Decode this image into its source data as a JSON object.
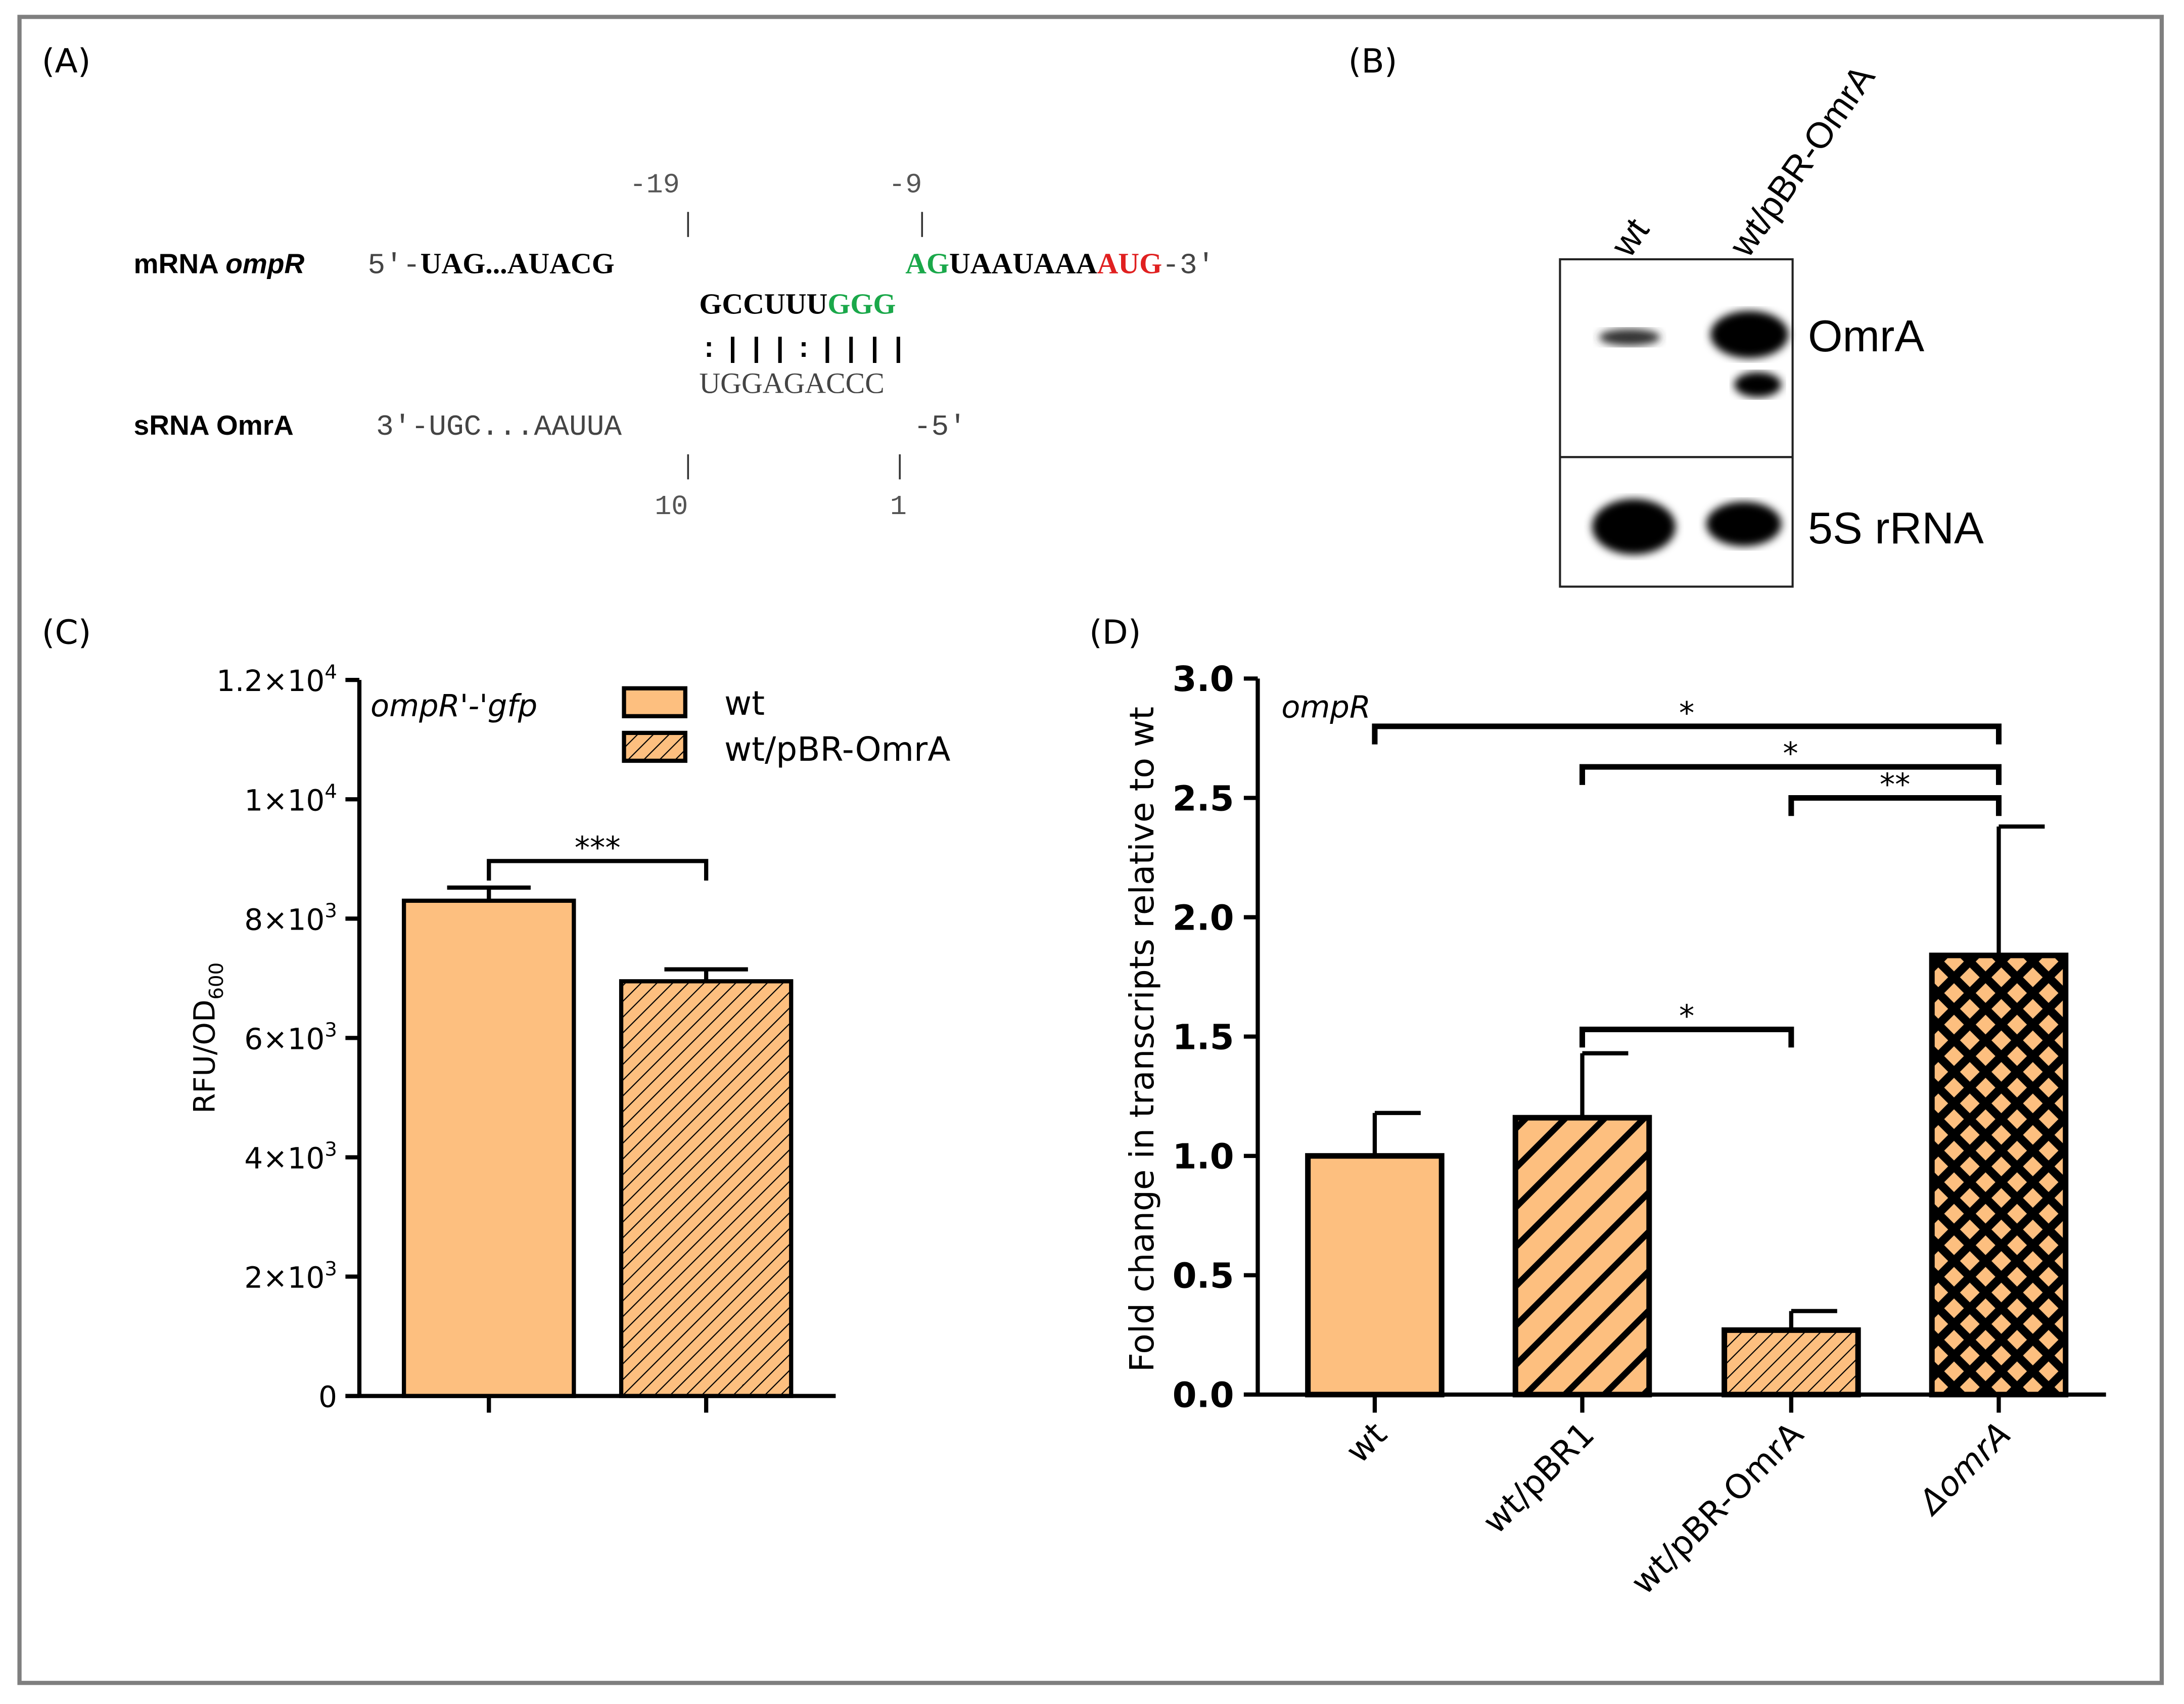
{
  "panel_labels": {
    "a": "(A)",
    "b": "(B)",
    "c": "(C)",
    "d": "(D)"
  },
  "panel_a": {
    "mrna_label_prefix": "mRNA ",
    "mrna_label_gene": "ompR",
    "mrna_5prime": "5'-",
    "mrna_seq_left": "UAG...AUACG",
    "mrna_green": "AG",
    "mrna_mid": "UAAUAAA",
    "mrna_red": "AUG",
    "mrna_3prime": "-3'",
    "loop_black": "GCCUUU",
    "loop_green": "GGG",
    "pairing": ":|||:||||",
    "srna_pair_seq": "UGGAGACCC",
    "srna_label": "sRNA OmrA",
    "srna_seq_left": "3'-UGC...AAUUA",
    "srna_5prime": "-5'",
    "pos_top_1": "-19",
    "pos_top_2": "-9",
    "pos_bottom_1": "10",
    "pos_bottom_2": "1",
    "colors": {
      "green": "#1aa84a",
      "red": "#e02020"
    }
  },
  "panel_b": {
    "lane_labels": [
      "wt",
      "wt/pBR-OmrA"
    ],
    "band_labels": [
      "OmrA",
      "5S rRNA"
    ]
  },
  "chart_data": [
    {
      "type": "bar",
      "title": "",
      "annotation": "ompR'-'gfp",
      "ylabel": "RFU/OD600",
      "ylabel_main": "RFU/OD",
      "ylabel_sub": "600",
      "ylim": [
        0,
        12000
      ],
      "yticks": [
        {
          "value": 0,
          "base": "0",
          "exp": ""
        },
        {
          "value": 2000,
          "base": "2×10",
          "exp": "3"
        },
        {
          "value": 4000,
          "base": "4×10",
          "exp": "3"
        },
        {
          "value": 6000,
          "base": "6×10",
          "exp": "3"
        },
        {
          "value": 8000,
          "base": "8×10",
          "exp": "3"
        },
        {
          "value": 10000,
          "base": "1×10",
          "exp": "4"
        },
        {
          "value": 12000,
          "base": "1.2×10",
          "exp": "4"
        }
      ],
      "legend": [
        "wt",
        "wt/pBR-OmrA"
      ],
      "legend_position": "top-right",
      "series": [
        {
          "name": "wt",
          "value": 8300,
          "error_upper": 8520,
          "pattern": "solid"
        },
        {
          "name": "wt/pBR-OmrA",
          "value": 6950,
          "error_upper": 7150,
          "pattern": "fine-hatch"
        }
      ],
      "significance": [
        {
          "from": 0,
          "to": 1,
          "label": "***"
        }
      ],
      "colors": {
        "fill": "#fdbf7f",
        "stroke": "#000000"
      }
    },
    {
      "type": "bar",
      "title": "",
      "annotation": "ompR",
      "ylabel": "Fold change in transcripts relative to wt",
      "xlabel": "",
      "ylim": [
        0,
        3.0
      ],
      "yticks": [
        "0.0",
        "0.5",
        "1.0",
        "1.5",
        "2.0",
        "2.5",
        "3.0"
      ],
      "categories": [
        "wt",
        "wt/pBR1",
        "wt/pBR-OmrA",
        "ΔomrA"
      ],
      "values": [
        1.0,
        1.16,
        0.27,
        1.84
      ],
      "error_upper": [
        1.18,
        1.43,
        0.35,
        2.38
      ],
      "patterns": [
        "solid",
        "thick-hatch",
        "fine-hatch",
        "crosshatch"
      ],
      "significance": [
        {
          "from": 0,
          "to": 3,
          "y": 2.8,
          "label": "*"
        },
        {
          "from": 1,
          "to": 3,
          "y": 2.63,
          "label": "*"
        },
        {
          "from": 2,
          "to": 3,
          "y": 2.5,
          "label": "**"
        },
        {
          "from": 1,
          "to": 2,
          "y": 1.53,
          "label": "*"
        }
      ],
      "colors": {
        "fill": "#fdbf7f",
        "stroke": "#000000"
      }
    }
  ]
}
